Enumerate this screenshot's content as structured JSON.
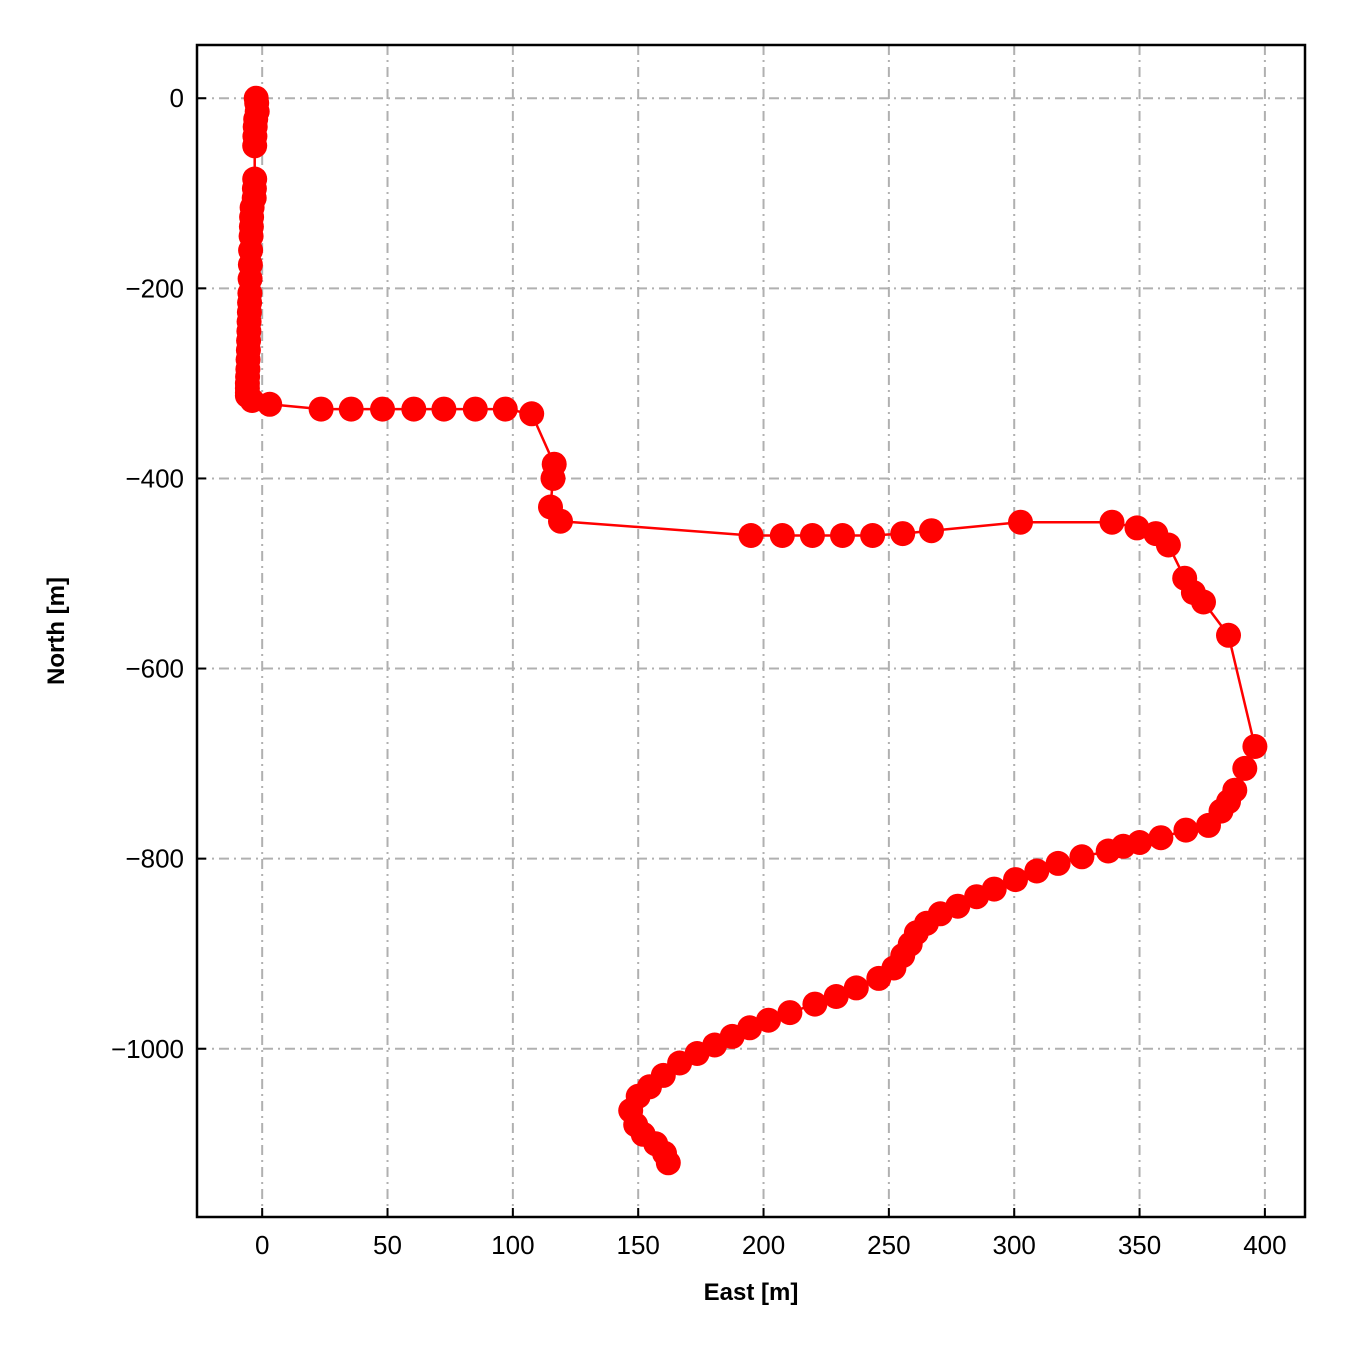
{
  "chart_data": {
    "type": "line",
    "title": "",
    "xlabel": "East [m]",
    "ylabel": "North [m]",
    "xlim": [
      -26,
      416
    ],
    "ylim": [
      -1177,
      56
    ],
    "xticks": [
      0,
      50,
      100,
      150,
      200,
      250,
      300,
      350,
      400
    ],
    "yticks": [
      0,
      -200,
      -400,
      -600,
      -800,
      -1000
    ],
    "xtick_labels": [
      "0",
      "50",
      "100",
      "150",
      "200",
      "250",
      "300",
      "350",
      "400"
    ],
    "ytick_labels": [
      "0",
      "−200",
      "−400",
      "−600",
      "−800",
      "−1000"
    ],
    "grid": true,
    "grid_style": "dash-dot",
    "series": [
      {
        "color": "#ff0000",
        "marker": "circle",
        "x": [
          -2.4,
          -2.2,
          -2.0,
          -2.6,
          -2.8,
          -2.9,
          -3.0,
          -3.0,
          -3.1,
          -3.2,
          -4.0,
          -4.2,
          -4.3,
          -4.4,
          -4.6,
          -4.7,
          -4.8,
          -4.9,
          -5.0,
          -5.1,
          -5.2,
          -5.3,
          -5.4,
          -5.5,
          -5.6,
          -5.7,
          -5.8,
          -5.9,
          -5.9,
          -5.9,
          -5.9,
          -4.0,
          3.0,
          23.5,
          35.5,
          48.0,
          60.5,
          72.5,
          85.0,
          97.0,
          107.5,
          116.5,
          116.0,
          115.0,
          119.0,
          195.0,
          207.5,
          219.5,
          231.5,
          243.5,
          255.5,
          267.0,
          302.5,
          339.0,
          349.0,
          356.5,
          361.5,
          368.0,
          371.5,
          375.5,
          385.5,
          396.0,
          392.0,
          388.0,
          385.5,
          382.5,
          377.5,
          368.5,
          358.5,
          350.0,
          343.5,
          337.5,
          327.0,
          317.5,
          309.0,
          300.5,
          292.0,
          285.0,
          277.5,
          270.5,
          265.0,
          261.0,
          258.5,
          255.5,
          252.0,
          246.0,
          237.0,
          229.0,
          220.5,
          210.5,
          202.0,
          194.5,
          187.5,
          180.5,
          173.5,
          166.5,
          160.0,
          154.5,
          150.0,
          147.0,
          149.0,
          152.0,
          157.0,
          160.5,
          162.0
        ],
        "y": [
          0,
          -5,
          -14,
          -22,
          -30,
          -40,
          -50,
          -85,
          -95,
          -105,
          -115,
          -125,
          -135,
          -145,
          -160,
          -175,
          -190,
          -205,
          -215,
          -225,
          -235,
          -245,
          -255,
          -265,
          -275,
          -285,
          -293,
          -300,
          -305,
          -310,
          -313,
          -318,
          -322,
          -327,
          -327,
          -327,
          -327,
          -327,
          -327,
          -327,
          -332,
          -385,
          -400,
          -430,
          -445,
          -460,
          -460,
          -460,
          -460,
          -460,
          -458,
          -455,
          -446,
          -446,
          -452,
          -458,
          -470,
          -505,
          -520,
          -530,
          -565,
          -682,
          -705,
          -728,
          -740,
          -750,
          -765,
          -770,
          -778,
          -783,
          -787,
          -792,
          -798,
          -805,
          -813,
          -822,
          -832,
          -840,
          -850,
          -858,
          -868,
          -878,
          -890,
          -902,
          -915,
          -926,
          -936,
          -945,
          -953,
          -962,
          -970,
          -978,
          -987,
          -996,
          -1005,
          -1015,
          -1028,
          -1040,
          -1050,
          -1065,
          -1080,
          -1090,
          -1100,
          -1110,
          -1120
        ]
      }
    ]
  }
}
